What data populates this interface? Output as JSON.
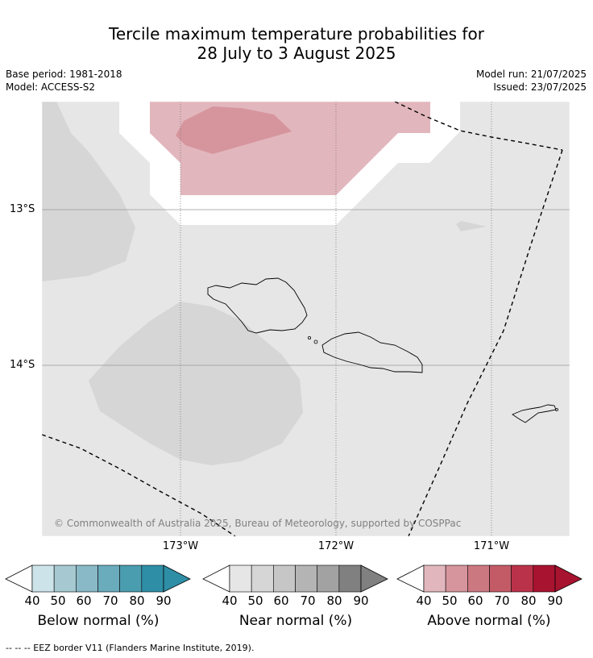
{
  "title_line1": "Tercile maximum temperature probabilities for",
  "title_line2": "28 July to 3 August 2025",
  "meta_left": {
    "base_period": "Base period: 1981-2018",
    "model": "Model: ACCESS-S2"
  },
  "meta_right": {
    "model_run": "Model run: 21/07/2025",
    "issued": "Issued: 23/07/2025"
  },
  "map": {
    "lat_labels": [
      "13°S",
      "14°S"
    ],
    "lon_labels": [
      "173°W",
      "172°W",
      "171°W"
    ],
    "copyright": "© Commonwealth of Australia 2025, Bureau of Meteorology, supported by COSPPac"
  },
  "colorbars": [
    {
      "label": "Below normal (%)",
      "ticks": [
        "40",
        "50",
        "60",
        "70",
        "80",
        "90"
      ],
      "colors": [
        "#cde3ea",
        "#a6c9d1",
        "#89b9c6",
        "#6aabbc",
        "#4a9daf",
        "#2e8ea6"
      ]
    },
    {
      "label": "Near normal (%)",
      "ticks": [
        "40",
        "50",
        "60",
        "70",
        "80",
        "90"
      ],
      "colors": [
        "#e6e6e6",
        "#d6d6d6",
        "#c6c6c6",
        "#b4b4b4",
        "#a2a2a2",
        "#808080"
      ]
    },
    {
      "label": "Above normal (%)",
      "ticks": [
        "40",
        "50",
        "60",
        "70",
        "80",
        "90"
      ],
      "colors": [
        "#e2b6bd",
        "#d6959d",
        "#cc7880",
        "#c35b67",
        "#ba3249",
        "#a8132f"
      ]
    }
  ],
  "footnote": "-- -- -- EEZ border V11 (Flanders Marine Institute, 2019)."
}
